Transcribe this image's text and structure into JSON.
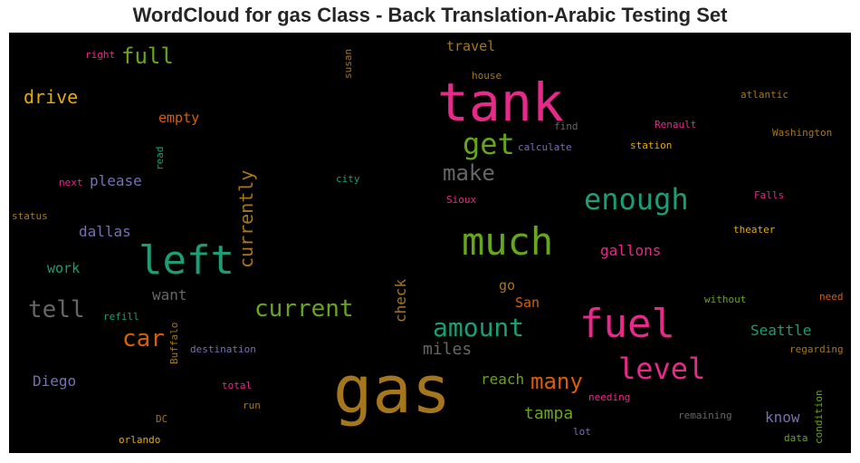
{
  "chart_data": {
    "type": "wordcloud",
    "title": "WordCloud for gas Class - Back Translation-Arabic Testing Set",
    "background": "#000000",
    "words": [
      {
        "text": "gas",
        "color": "#a6761d"
      },
      {
        "text": "tank",
        "color": "#e7298a"
      },
      {
        "text": "fuel",
        "color": "#e7298a"
      },
      {
        "text": "left",
        "color": "#1b9e77"
      },
      {
        "text": "much",
        "color": "#66a61e"
      },
      {
        "text": "level",
        "color": "#e7298a"
      },
      {
        "text": "enough",
        "color": "#1b9e77"
      },
      {
        "text": "amount",
        "color": "#1b9e77"
      },
      {
        "text": "get",
        "color": "#66a61e"
      },
      {
        "text": "current",
        "color": "#66a61e"
      },
      {
        "text": "make",
        "color": "#666666"
      },
      {
        "text": "many",
        "color": "#d95f02"
      },
      {
        "text": "car",
        "color": "#d95f02"
      },
      {
        "text": "tell",
        "color": "#666666"
      },
      {
        "text": "full",
        "color": "#66a61e"
      },
      {
        "text": "currently",
        "color": "#a6761d"
      },
      {
        "text": "drive",
        "color": "#e6ab02"
      },
      {
        "text": "tampa",
        "color": "#66a61e"
      },
      {
        "text": "miles",
        "color": "#666666"
      },
      {
        "text": "Seattle",
        "color": "#1b9e77"
      },
      {
        "text": "dallas",
        "color": "#7570b3"
      },
      {
        "text": "gallons",
        "color": "#e7298a"
      },
      {
        "text": "reach",
        "color": "#66a61e"
      },
      {
        "text": "know",
        "color": "#7570b3"
      },
      {
        "text": "Diego",
        "color": "#7570b3"
      },
      {
        "text": "want",
        "color": "#666666"
      },
      {
        "text": "check",
        "color": "#a6761d"
      },
      {
        "text": "please",
        "color": "#7570b3"
      },
      {
        "text": "travel",
        "color": "#a6761d"
      },
      {
        "text": "work",
        "color": "#1b9e77"
      },
      {
        "text": "San",
        "color": "#d95f02"
      },
      {
        "text": "go",
        "color": "#a6761d"
      },
      {
        "text": "empty",
        "color": "#d95f02"
      },
      {
        "text": "right",
        "color": "#e7298a"
      },
      {
        "text": "house",
        "color": "#a6761d"
      },
      {
        "text": "susan",
        "color": "#a6761d"
      },
      {
        "text": "atlantic",
        "color": "#a6761d"
      },
      {
        "text": "Renault",
        "color": "#e7298a"
      },
      {
        "text": "Washington",
        "color": "#a6761d"
      },
      {
        "text": "find",
        "color": "#666666"
      },
      {
        "text": "calculate",
        "color": "#7570b3"
      },
      {
        "text": "station",
        "color": "#e6ab02"
      },
      {
        "text": "read",
        "color": "#1b9e77"
      },
      {
        "text": "next",
        "color": "#e7298a"
      },
      {
        "text": "city",
        "color": "#1b9e77"
      },
      {
        "text": "Sioux",
        "color": "#e7298a"
      },
      {
        "text": "Falls",
        "color": "#e7298a"
      },
      {
        "text": "status",
        "color": "#a6761d"
      },
      {
        "text": "theater",
        "color": "#e6ab02"
      },
      {
        "text": "refill",
        "color": "#1b9e77"
      },
      {
        "text": "Buffalo",
        "color": "#a6761d"
      },
      {
        "text": "destination",
        "color": "#7570b3"
      },
      {
        "text": "without",
        "color": "#66a61e"
      },
      {
        "text": "need",
        "color": "#d95f02"
      },
      {
        "text": "regarding",
        "color": "#a6761d"
      },
      {
        "text": "total",
        "color": "#e7298a"
      },
      {
        "text": "run",
        "color": "#a6761d"
      },
      {
        "text": "needing",
        "color": "#e7298a"
      },
      {
        "text": "DC",
        "color": "#a6761d"
      },
      {
        "text": "remaining",
        "color": "#666666"
      },
      {
        "text": "condition",
        "color": "#66a61e"
      },
      {
        "text": "lot",
        "color": "#7570b3"
      },
      {
        "text": "orlando",
        "color": "#e6ab02"
      },
      {
        "text": "data",
        "color": "#66a61e"
      }
    ]
  }
}
